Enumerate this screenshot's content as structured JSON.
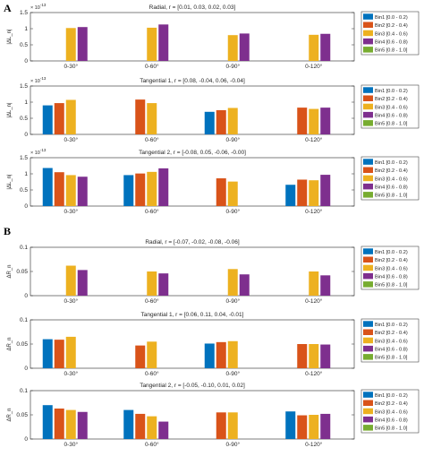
{
  "panels": [
    {
      "label": "A"
    },
    {
      "label": "B"
    }
  ],
  "colors": [
    "#0072BD",
    "#D95319",
    "#EDB120",
    "#7E2F8E",
    "#77AC30"
  ],
  "chart_data": [
    {
      "type": "bar",
      "title": "Radial, r = [0.01, 0.03, 0.02, 0.03]",
      "ylabel": "|ΔL_n|",
      "exponent": "× 10^-13",
      "ylim": [
        0,
        1.5
      ],
      "yticks": [
        0,
        0.5,
        1,
        1.5
      ],
      "ytick_labels": [
        "0",
        "0.5",
        "1",
        "1.5"
      ],
      "grid": false,
      "legend": "right",
      "categories": [
        "0-30°",
        "0-60°",
        "0-90°",
        "0-120°"
      ],
      "series": [
        {
          "name": "Bin1 [0.0 - 0.2)",
          "values": [
            0,
            0,
            0,
            0
          ]
        },
        {
          "name": "Bin2 [0.2 - 0.4)",
          "values": [
            0,
            0,
            0,
            0
          ]
        },
        {
          "name": "Bin3 [0.4 - 0.6)",
          "values": [
            1.02,
            1.03,
            0.8,
            0.81
          ]
        },
        {
          "name": "Bin4 [0.6 - 0.8)",
          "values": [
            1.05,
            1.13,
            0.85,
            0.84
          ]
        },
        {
          "name": "Bin5 [0.8 - 1.0]",
          "values": [
            0,
            0,
            0,
            0
          ]
        }
      ]
    },
    {
      "type": "bar",
      "title": "Tangential 1, r = [0.08, -0.04, 0.06, -0.04]",
      "ylabel": "|ΔL_n|",
      "exponent": "× 10^-13",
      "ylim": [
        0,
        1.5
      ],
      "yticks": [
        0,
        0.5,
        1,
        1.5
      ],
      "ytick_labels": [
        "0",
        "0.5",
        "1",
        "1.5"
      ],
      "grid": false,
      "legend": "right",
      "categories": [
        "0-30°",
        "0-60°",
        "0-90°",
        "0-120°"
      ],
      "series": [
        {
          "name": "Bin1 [0.0 - 0.2)",
          "values": [
            0.9,
            0,
            0.7,
            0
          ]
        },
        {
          "name": "Bin2 [0.2 - 0.4)",
          "values": [
            0.97,
            1.08,
            0.75,
            0.83
          ]
        },
        {
          "name": "Bin3 [0.4 - 0.6)",
          "values": [
            1.07,
            0.97,
            0.82,
            0.79
          ]
        },
        {
          "name": "Bin4 [0.6 - 0.8)",
          "values": [
            0,
            0,
            0,
            0.83
          ]
        },
        {
          "name": "Bin5 [0.8 - 1.0]",
          "values": [
            0,
            0,
            0,
            0
          ]
        }
      ]
    },
    {
      "type": "bar",
      "title": "Tangential 2, r = [-0.08, 0.05, -0.06, -0.00]",
      "ylabel": "|ΔL_n|",
      "exponent": "× 10^-13",
      "ylim": [
        0,
        1.5
      ],
      "yticks": [
        0,
        0.5,
        1,
        1.5
      ],
      "ytick_labels": [
        "0",
        "0.5",
        "1",
        "1.5"
      ],
      "grid": false,
      "legend": "right",
      "categories": [
        "0-30°",
        "0-60°",
        "0-90°",
        "0-120°"
      ],
      "series": [
        {
          "name": "Bin1 [0.0 - 0.2)",
          "values": [
            1.18,
            0.96,
            0,
            0.66
          ]
        },
        {
          "name": "Bin2 [0.2 - 0.4)",
          "values": [
            1.05,
            1.01,
            0.86,
            0.82
          ]
        },
        {
          "name": "Bin3 [0.4 - 0.6)",
          "values": [
            0.96,
            1.06,
            0.76,
            0.8
          ]
        },
        {
          "name": "Bin4 [0.6 - 0.8)",
          "values": [
            0.91,
            1.17,
            0,
            0.97
          ]
        },
        {
          "name": "Bin5 [0.8 - 1.0]",
          "values": [
            0,
            0,
            0,
            0
          ]
        }
      ]
    },
    {
      "type": "bar",
      "title": "Radial, r = [-0.07, -0.02, -0.08, -0.06]",
      "ylabel": "ΔR_n",
      "exponent": "",
      "ylim": [
        0,
        0.1
      ],
      "yticks": [
        0,
        0.05,
        0.1
      ],
      "ytick_labels": [
        "0",
        "0.05",
        "0.1"
      ],
      "grid": false,
      "legend": "right",
      "categories": [
        "0-30°",
        "0-60°",
        "0-90°",
        "0-120°"
      ],
      "series": [
        {
          "name": "Bin1 [0.0 - 0.2)",
          "values": [
            0,
            0,
            0,
            0
          ]
        },
        {
          "name": "Bin2 [0.2 - 0.4)",
          "values": [
            0,
            0,
            0,
            0
          ]
        },
        {
          "name": "Bin3 [0.4 - 0.6)",
          "values": [
            0.062,
            0.05,
            0.055,
            0.05
          ]
        },
        {
          "name": "Bin4 [0.6 - 0.8)",
          "values": [
            0.053,
            0.046,
            0.044,
            0.042
          ]
        },
        {
          "name": "Bin5 [0.8 - 1.0]",
          "values": [
            0,
            0,
            0,
            0
          ]
        }
      ]
    },
    {
      "type": "bar",
      "title": "Tangential 1, r = [0.06, 0.11, 0.04, -0.01]",
      "ylabel": "ΔR_n",
      "exponent": "",
      "ylim": [
        0,
        0.1
      ],
      "yticks": [
        0,
        0.05,
        0.1
      ],
      "ytick_labels": [
        "0",
        "0.05",
        "0.1"
      ],
      "grid": false,
      "legend": "right",
      "categories": [
        "0-30°",
        "0-60°",
        "0-90°",
        "0-120°"
      ],
      "series": [
        {
          "name": "Bin1 [0.0 - 0.2)",
          "values": [
            0.06,
            0,
            0.051,
            0
          ]
        },
        {
          "name": "Bin2 [0.2 - 0.4)",
          "values": [
            0.059,
            0.047,
            0.054,
            0.05
          ]
        },
        {
          "name": "Bin3 [0.4 - 0.6)",
          "values": [
            0.065,
            0.055,
            0.056,
            0.05
          ]
        },
        {
          "name": "Bin4 [0.6 - 0.8)",
          "values": [
            0,
            0,
            0,
            0.049
          ]
        },
        {
          "name": "Bin5 [0.8 - 1.0]",
          "values": [
            0,
            0,
            0,
            0
          ]
        }
      ]
    },
    {
      "type": "bar",
      "title": "Tangential 2, r = [-0.05, -0.10, 0.01, 0.02]",
      "ylabel": "ΔR_n",
      "exponent": "",
      "ylim": [
        0,
        0.1
      ],
      "yticks": [
        0,
        0.05,
        0.1
      ],
      "ytick_labels": [
        "0",
        "0.05",
        "0.1"
      ],
      "grid": false,
      "legend": "right",
      "categories": [
        "0-30°",
        "0-60°",
        "0-90°",
        "0-120°"
      ],
      "series": [
        {
          "name": "Bin1 [0.0 - 0.2)",
          "values": [
            0.07,
            0.06,
            0,
            0.057
          ]
        },
        {
          "name": "Bin2 [0.2 - 0.4)",
          "values": [
            0.063,
            0.052,
            0.055,
            0.049
          ]
        },
        {
          "name": "Bin3 [0.4 - 0.6)",
          "values": [
            0.06,
            0.047,
            0.055,
            0.05
          ]
        },
        {
          "name": "Bin4 [0.6 - 0.8)",
          "values": [
            0.056,
            0.036,
            0,
            0.052
          ]
        },
        {
          "name": "Bin5 [0.8 - 1.0]",
          "values": [
            0,
            0,
            0,
            0
          ]
        }
      ]
    }
  ]
}
